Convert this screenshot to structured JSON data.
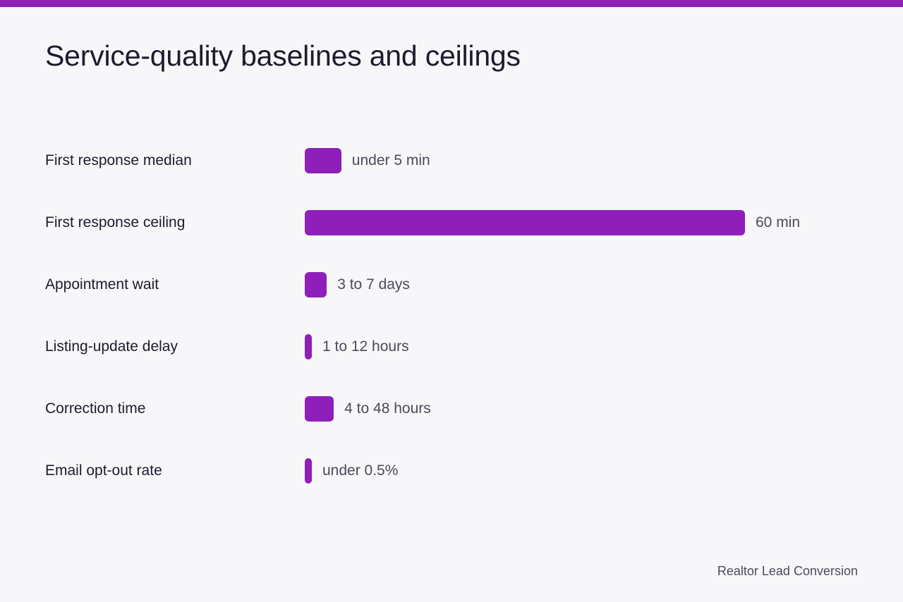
{
  "colors": {
    "accent": "#8e1fb9",
    "background": "#f7f7f9",
    "text": "#1c1b2e",
    "muted_text": "#4a4a5c"
  },
  "title": "Service-quality baselines and ceilings",
  "footer": "Realtor Lead Conversion",
  "chart_data": {
    "type": "bar",
    "orientation": "horizontal",
    "title": "Service-quality baselines and ceilings",
    "xlabel": "",
    "ylabel": "",
    "grid": false,
    "legend": "none",
    "xlim": [
      0,
      100
    ],
    "categories": [
      "First response median",
      "First response ceiling",
      "Appointment wait",
      "Listing-update delay",
      "Correction time",
      "Email opt-out rate"
    ],
    "values": [
      8.3,
      100,
      5,
      1.6,
      6.6,
      1
    ],
    "value_labels": [
      "under 5 min",
      "60 min",
      "3 to 7 days",
      "1 to 12 hours",
      "4 to 48 hours",
      "under 0.5%"
    ]
  }
}
